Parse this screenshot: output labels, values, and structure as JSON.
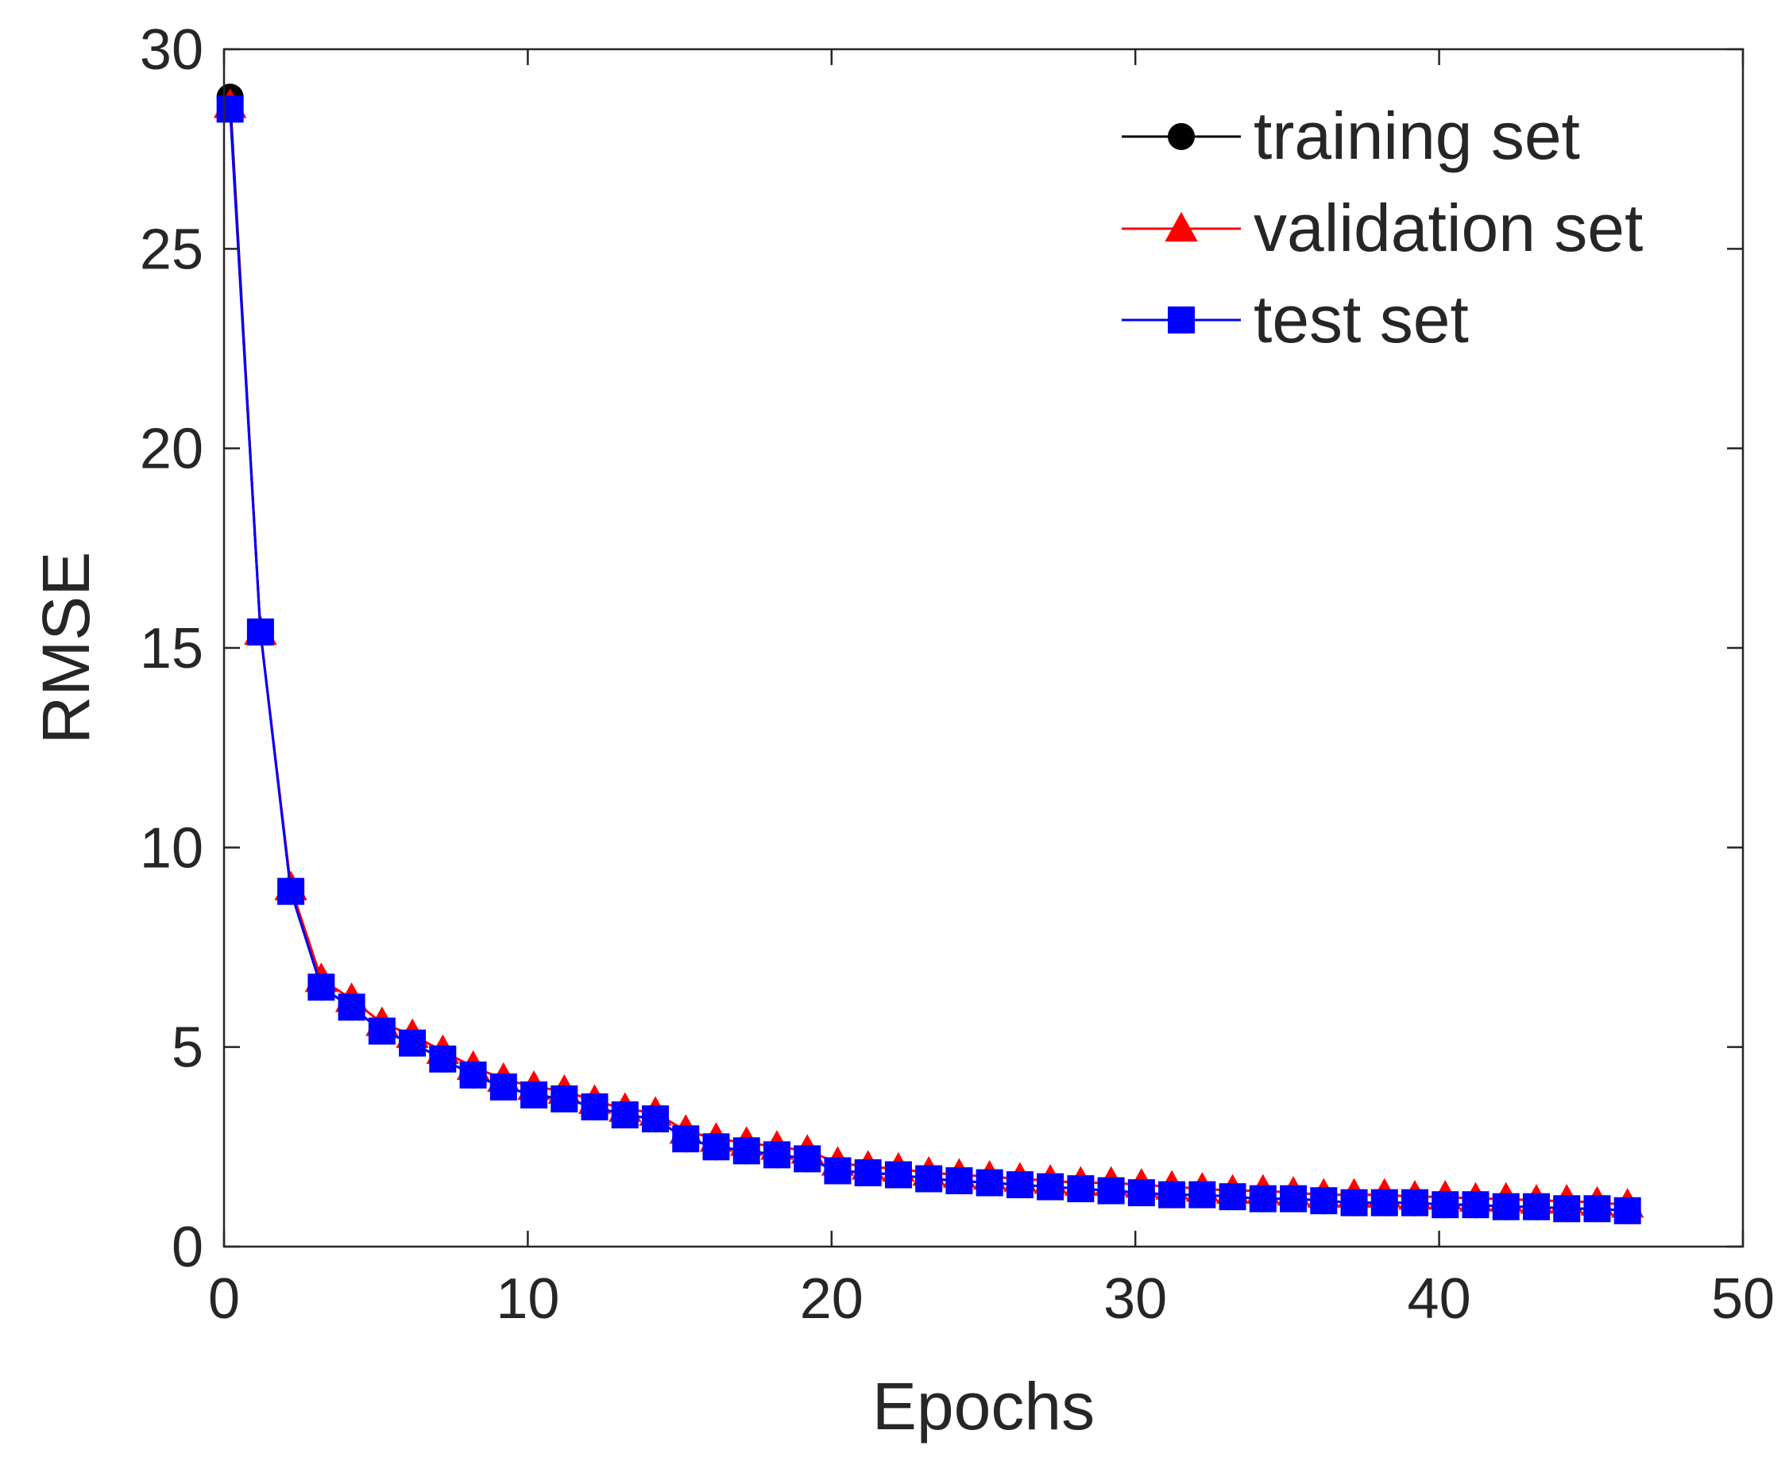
{
  "chart_data": {
    "type": "line",
    "title": "",
    "xlabel": "Epochs",
    "ylabel": "RMSE",
    "xlim": [
      0,
      50
    ],
    "ylim": [
      0,
      30
    ],
    "xticks": [
      0,
      10,
      20,
      30,
      40,
      50
    ],
    "yticks": [
      0,
      5,
      10,
      15,
      20,
      25,
      30
    ],
    "grid": false,
    "legend_position": "top-right",
    "x": [
      0.2,
      1.2,
      2.2,
      3.2,
      4.2,
      5.2,
      6.2,
      7.2,
      8.2,
      9.2,
      10.2,
      11.2,
      12.2,
      13.2,
      14.2,
      15.2,
      16.2,
      17.2,
      18.2,
      19.2,
      20.2,
      21.2,
      22.2,
      23.2,
      24.2,
      25.2,
      26.2,
      27.2,
      28.2,
      29.2,
      30.2,
      31.2,
      32.2,
      33.2,
      34.2,
      35.2,
      36.2,
      37.2,
      38.2,
      39.2,
      40.2,
      41.2,
      42.2,
      43.2,
      44.2,
      45.2,
      46.2
    ],
    "series": [
      {
        "name": "training set",
        "color": "#000000",
        "marker": "circle",
        "values": [
          28.8,
          15.4,
          8.9,
          6.5,
          6.0,
          5.4,
          5.1,
          4.7,
          4.3,
          4.0,
          3.8,
          3.7,
          3.5,
          3.3,
          3.2,
          2.7,
          2.5,
          2.4,
          2.3,
          2.2,
          1.9,
          1.85,
          1.8,
          1.7,
          1.65,
          1.6,
          1.55,
          1.5,
          1.45,
          1.4,
          1.35,
          1.3,
          1.3,
          1.25,
          1.2,
          1.2,
          1.15,
          1.1,
          1.1,
          1.1,
          1.05,
          1.05,
          1.0,
          1.0,
          0.95,
          0.95,
          0.9
        ]
      },
      {
        "name": "validation set",
        "color": "#ff0000",
        "marker": "triangle",
        "values": [
          28.6,
          15.4,
          9.0,
          6.7,
          6.2,
          5.6,
          5.3,
          4.9,
          4.5,
          4.2,
          4.0,
          3.9,
          3.65,
          3.45,
          3.35,
          2.9,
          2.7,
          2.6,
          2.5,
          2.4,
          2.1,
          2.0,
          1.95,
          1.85,
          1.8,
          1.75,
          1.7,
          1.65,
          1.6,
          1.6,
          1.55,
          1.5,
          1.45,
          1.4,
          1.4,
          1.35,
          1.3,
          1.3,
          1.3,
          1.25,
          1.25,
          1.2,
          1.2,
          1.15,
          1.15,
          1.1,
          1.05
        ]
      },
      {
        "name": "test set",
        "color": "#0000ff",
        "marker": "square",
        "values": [
          28.5,
          15.4,
          8.9,
          6.5,
          6.0,
          5.4,
          5.1,
          4.7,
          4.3,
          4.0,
          3.8,
          3.7,
          3.5,
          3.3,
          3.2,
          2.7,
          2.5,
          2.4,
          2.3,
          2.2,
          1.9,
          1.85,
          1.8,
          1.7,
          1.65,
          1.6,
          1.55,
          1.5,
          1.45,
          1.4,
          1.35,
          1.3,
          1.3,
          1.25,
          1.2,
          1.2,
          1.15,
          1.1,
          1.1,
          1.1,
          1.05,
          1.05,
          1.0,
          1.0,
          0.95,
          0.95,
          0.9
        ]
      }
    ]
  }
}
